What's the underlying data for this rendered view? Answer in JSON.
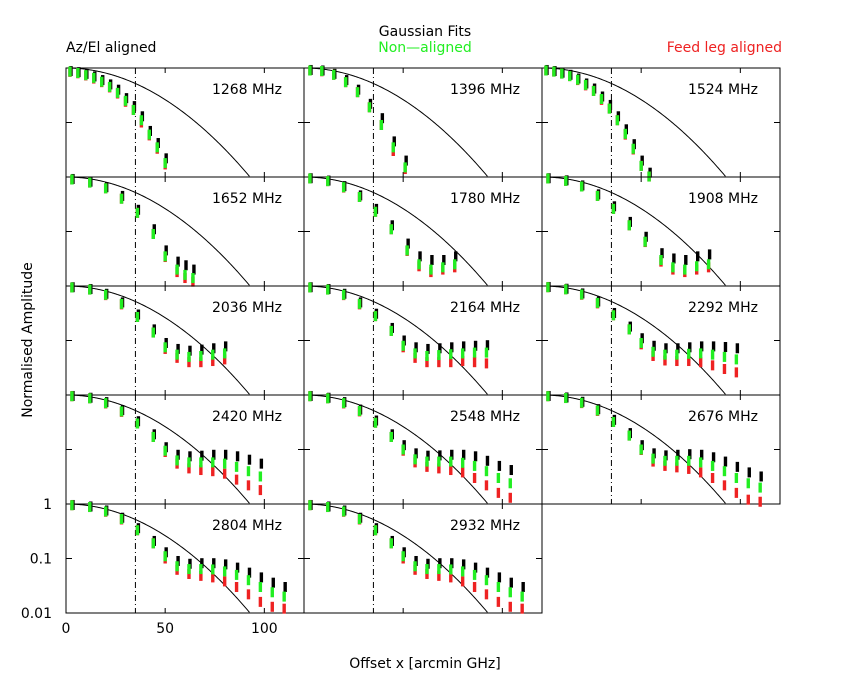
{
  "header": {
    "title": "Gaussian Fits",
    "legend": [
      {
        "label": "Az/El aligned",
        "color": "#000000"
      },
      {
        "label": "Non—aligned",
        "color": "#22ee22"
      },
      {
        "label": "Feed leg aligned",
        "color": "#ee2222"
      }
    ]
  },
  "chart_data": {
    "type": "scatter",
    "panel_count": 14,
    "layout": "5 rows x 3 columns small multiples",
    "xlabel": "Offset x [arcmin GHz]",
    "ylabel": "Normalised Amplitude",
    "xlim": [
      0,
      120
    ],
    "ylim": [
      0.01,
      1
    ],
    "yscale": "log",
    "x_ticks": [
      0,
      50,
      100
    ],
    "y_ticks": [
      {
        "value": 1,
        "label": "1"
      },
      {
        "value": 0.1,
        "label": "0.1"
      },
      {
        "value": 0.01,
        "label": "0.01"
      }
    ],
    "reference_line_x": 35,
    "gaussian_hwhm": 36,
    "panels": [
      {
        "label": "1268 MHz",
        "x": [
          2,
          6,
          10,
          14,
          18,
          22,
          26,
          30,
          34,
          38,
          42,
          46,
          50
        ],
        "black": [
          0.88,
          0.84,
          0.78,
          0.7,
          0.6,
          0.5,
          0.4,
          0.28,
          0.2,
          0.13,
          0.07,
          0.042,
          0.022
        ],
        "green": [
          0.86,
          0.81,
          0.74,
          0.66,
          0.56,
          0.45,
          0.35,
          0.25,
          0.17,
          0.11,
          0.06,
          0.035,
          0.018
        ],
        "red": [
          0.85,
          0.8,
          0.73,
          0.64,
          0.55,
          0.44,
          0.34,
          0.24,
          0.17,
          0.1,
          0.058,
          0.033,
          0.017
        ]
      },
      {
        "label": "1396 MHz",
        "x": [
          3,
          9,
          15,
          21,
          27,
          33,
          39,
          45,
          51
        ],
        "black": [
          0.92,
          0.9,
          0.78,
          0.6,
          0.4,
          0.22,
          0.12,
          0.045,
          0.02
        ],
        "green": [
          0.9,
          0.88,
          0.75,
          0.55,
          0.36,
          0.19,
          0.09,
          0.035,
          0.015
        ],
        "red": [
          0.9,
          0.87,
          0.75,
          0.55,
          0.36,
          0.19,
          0.09,
          0.03,
          0.014
        ]
      },
      {
        "label": "1524 MHz",
        "x": [
          2,
          6,
          10,
          14,
          18,
          22,
          26,
          30,
          34,
          38,
          42,
          46,
          50,
          54
        ],
        "black": [
          0.92,
          0.88,
          0.82,
          0.75,
          0.64,
          0.52,
          0.42,
          0.3,
          0.21,
          0.13,
          0.075,
          0.04,
          0.02,
          0.012
        ],
        "green": [
          0.9,
          0.86,
          0.79,
          0.71,
          0.61,
          0.49,
          0.38,
          0.27,
          0.18,
          0.11,
          0.062,
          0.033,
          0.016,
          0.01
        ],
        "red": [
          0.9,
          0.86,
          0.79,
          0.71,
          0.6,
          0.48,
          0.38,
          0.26,
          0.18,
          0.11,
          0.06,
          0.032,
          0.016,
          0.01
        ]
      },
      {
        "label": "1652 MHz",
        "x": [
          3,
          12,
          20,
          28,
          36,
          44,
          50,
          56,
          60,
          64
        ],
        "black": [
          0.92,
          0.82,
          0.65,
          0.45,
          0.25,
          0.11,
          0.045,
          0.028,
          0.024,
          0.02
        ],
        "green": [
          0.9,
          0.79,
          0.62,
          0.4,
          0.22,
          0.09,
          0.035,
          0.02,
          0.016,
          0.014
        ],
        "red": [
          0.9,
          0.79,
          0.62,
          0.4,
          0.22,
          0.09,
          0.034,
          0.018,
          0.014,
          0.012
        ]
      },
      {
        "label": "1780 MHz",
        "x": [
          3,
          12,
          20,
          28,
          36,
          44,
          52,
          58,
          64,
          70,
          76
        ],
        "black": [
          0.95,
          0.86,
          0.68,
          0.46,
          0.26,
          0.13,
          0.06,
          0.035,
          0.03,
          0.03,
          0.035
        ],
        "green": [
          0.94,
          0.84,
          0.65,
          0.43,
          0.23,
          0.11,
          0.045,
          0.025,
          0.02,
          0.022,
          0.025
        ],
        "red": [
          0.94,
          0.84,
          0.64,
          0.43,
          0.23,
          0.11,
          0.044,
          0.023,
          0.018,
          0.02,
          0.022
        ]
      },
      {
        "label": "1908 MHz",
        "x": [
          3,
          12,
          20,
          28,
          36,
          44,
          52,
          60,
          66,
          72,
          78,
          84
        ],
        "black": [
          0.95,
          0.87,
          0.7,
          0.48,
          0.29,
          0.15,
          0.08,
          0.04,
          0.032,
          0.03,
          0.035,
          0.038
        ],
        "green": [
          0.94,
          0.85,
          0.67,
          0.45,
          0.26,
          0.13,
          0.065,
          0.03,
          0.022,
          0.02,
          0.023,
          0.025
        ],
        "red": [
          0.94,
          0.85,
          0.67,
          0.45,
          0.26,
          0.13,
          0.064,
          0.028,
          0.02,
          0.018,
          0.02,
          0.022
        ]
      },
      {
        "label": "2036 MHz",
        "x": [
          3,
          12,
          20,
          28,
          36,
          44,
          50,
          56,
          62,
          68,
          74,
          80
        ],
        "black": [
          0.95,
          0.88,
          0.72,
          0.5,
          0.3,
          0.16,
          0.09,
          0.07,
          0.065,
          0.068,
          0.072,
          0.078
        ],
        "green": [
          0.94,
          0.86,
          0.69,
          0.47,
          0.27,
          0.14,
          0.075,
          0.055,
          0.05,
          0.052,
          0.055,
          0.058
        ],
        "red": [
          0.94,
          0.86,
          0.68,
          0.46,
          0.27,
          0.14,
          0.07,
          0.048,
          0.04,
          0.04,
          0.042,
          0.045
        ]
      },
      {
        "label": "2164 MHz",
        "x": [
          3,
          12,
          20,
          28,
          36,
          44,
          50,
          56,
          62,
          68,
          74,
          80,
          86,
          92
        ],
        "black": [
          0.95,
          0.88,
          0.72,
          0.5,
          0.31,
          0.17,
          0.1,
          0.075,
          0.07,
          0.072,
          0.075,
          0.078,
          0.08,
          0.082
        ],
        "green": [
          0.94,
          0.86,
          0.69,
          0.47,
          0.28,
          0.15,
          0.08,
          0.058,
          0.052,
          0.054,
          0.056,
          0.058,
          0.06,
          0.06
        ],
        "red": [
          0.94,
          0.86,
          0.68,
          0.46,
          0.28,
          0.15,
          0.075,
          0.048,
          0.04,
          0.04,
          0.04,
          0.042,
          0.04,
          0.038
        ]
      },
      {
        "label": "2292 MHz",
        "x": [
          3,
          12,
          20,
          28,
          36,
          44,
          50,
          56,
          62,
          68,
          74,
          80,
          86,
          92,
          98
        ],
        "black": [
          0.96,
          0.89,
          0.73,
          0.52,
          0.32,
          0.18,
          0.11,
          0.08,
          0.072,
          0.072,
          0.075,
          0.078,
          0.078,
          0.076,
          0.072
        ],
        "green": [
          0.95,
          0.87,
          0.7,
          0.49,
          0.29,
          0.16,
          0.09,
          0.062,
          0.055,
          0.055,
          0.057,
          0.058,
          0.055,
          0.05,
          0.045
        ],
        "red": [
          0.95,
          0.87,
          0.69,
          0.48,
          0.29,
          0.16,
          0.085,
          0.052,
          0.043,
          0.042,
          0.042,
          0.04,
          0.035,
          0.03,
          0.026
        ]
      },
      {
        "label": "2420 MHz",
        "x": [
          3,
          12,
          20,
          28,
          36,
          44,
          50,
          56,
          62,
          68,
          74,
          80,
          86,
          92,
          98
        ],
        "black": [
          0.96,
          0.89,
          0.74,
          0.53,
          0.33,
          0.19,
          0.11,
          0.08,
          0.075,
          0.077,
          0.08,
          0.08,
          0.075,
          0.065,
          0.055
        ],
        "green": [
          0.95,
          0.87,
          0.71,
          0.5,
          0.3,
          0.17,
          0.095,
          0.063,
          0.058,
          0.058,
          0.058,
          0.055,
          0.048,
          0.04,
          0.032
        ],
        "red": [
          0.95,
          0.87,
          0.7,
          0.49,
          0.3,
          0.17,
          0.09,
          0.055,
          0.045,
          0.042,
          0.04,
          0.036,
          0.028,
          0.022,
          0.018
        ]
      },
      {
        "label": "2548 MHz",
        "x": [
          3,
          12,
          20,
          28,
          36,
          44,
          50,
          56,
          62,
          68,
          74,
          80,
          86,
          92,
          98,
          104
        ],
        "black": [
          0.96,
          0.89,
          0.74,
          0.54,
          0.34,
          0.19,
          0.12,
          0.085,
          0.077,
          0.078,
          0.08,
          0.08,
          0.075,
          0.062,
          0.05,
          0.042
        ],
        "green": [
          0.95,
          0.87,
          0.71,
          0.51,
          0.31,
          0.17,
          0.1,
          0.066,
          0.06,
          0.06,
          0.06,
          0.057,
          0.05,
          0.04,
          0.03,
          0.024
        ],
        "red": [
          0.95,
          0.87,
          0.7,
          0.5,
          0.31,
          0.17,
          0.095,
          0.058,
          0.048,
          0.045,
          0.042,
          0.038,
          0.03,
          0.022,
          0.016,
          0.013
        ]
      },
      {
        "label": "2676 MHz",
        "x": [
          3,
          12,
          20,
          28,
          36,
          44,
          50,
          56,
          62,
          68,
          74,
          80,
          86,
          92,
          98,
          104,
          110
        ],
        "black": [
          0.96,
          0.9,
          0.75,
          0.55,
          0.35,
          0.2,
          0.12,
          0.085,
          0.078,
          0.08,
          0.082,
          0.08,
          0.072,
          0.06,
          0.048,
          0.038,
          0.032
        ],
        "green": [
          0.95,
          0.88,
          0.72,
          0.52,
          0.32,
          0.18,
          0.1,
          0.068,
          0.062,
          0.062,
          0.062,
          0.058,
          0.05,
          0.04,
          0.03,
          0.024,
          0.02
        ],
        "red": [
          0.95,
          0.88,
          0.71,
          0.51,
          0.32,
          0.18,
          0.098,
          0.06,
          0.05,
          0.047,
          0.044,
          0.038,
          0.03,
          0.022,
          0.016,
          0.012,
          0.011
        ]
      },
      {
        "label": "2804 MHz",
        "x": [
          3,
          12,
          20,
          28,
          36,
          44,
          50,
          56,
          62,
          68,
          74,
          80,
          86,
          92,
          98,
          104,
          110
        ],
        "black": [
          0.96,
          0.9,
          0.76,
          0.56,
          0.36,
          0.21,
          0.13,
          0.09,
          0.08,
          0.082,
          0.082,
          0.078,
          0.068,
          0.055,
          0.045,
          0.036,
          0.03
        ],
        "green": [
          0.95,
          0.88,
          0.73,
          0.53,
          0.33,
          0.19,
          0.11,
          0.072,
          0.064,
          0.064,
          0.063,
          0.058,
          0.05,
          0.04,
          0.03,
          0.024,
          0.02
        ],
        "red": [
          0.95,
          0.88,
          0.72,
          0.52,
          0.33,
          0.19,
          0.1,
          0.062,
          0.052,
          0.048,
          0.045,
          0.038,
          0.03,
          0.022,
          0.016,
          0.013,
          0.012
        ]
      },
      {
        "label": "2932 MHz",
        "x": [
          3,
          12,
          20,
          28,
          36,
          44,
          50,
          56,
          62,
          68,
          74,
          80,
          86,
          92,
          98,
          104,
          110
        ],
        "black": [
          0.96,
          0.9,
          0.76,
          0.56,
          0.36,
          0.21,
          0.13,
          0.09,
          0.08,
          0.082,
          0.082,
          0.078,
          0.068,
          0.055,
          0.045,
          0.036,
          0.03
        ],
        "green": [
          0.95,
          0.88,
          0.73,
          0.53,
          0.33,
          0.19,
          0.11,
          0.072,
          0.064,
          0.064,
          0.063,
          0.058,
          0.05,
          0.04,
          0.03,
          0.024,
          0.02
        ],
        "red": [
          0.95,
          0.88,
          0.72,
          0.52,
          0.33,
          0.19,
          0.1,
          0.062,
          0.052,
          0.048,
          0.045,
          0.038,
          0.03,
          0.022,
          0.016,
          0.013,
          0.012
        ]
      }
    ]
  }
}
